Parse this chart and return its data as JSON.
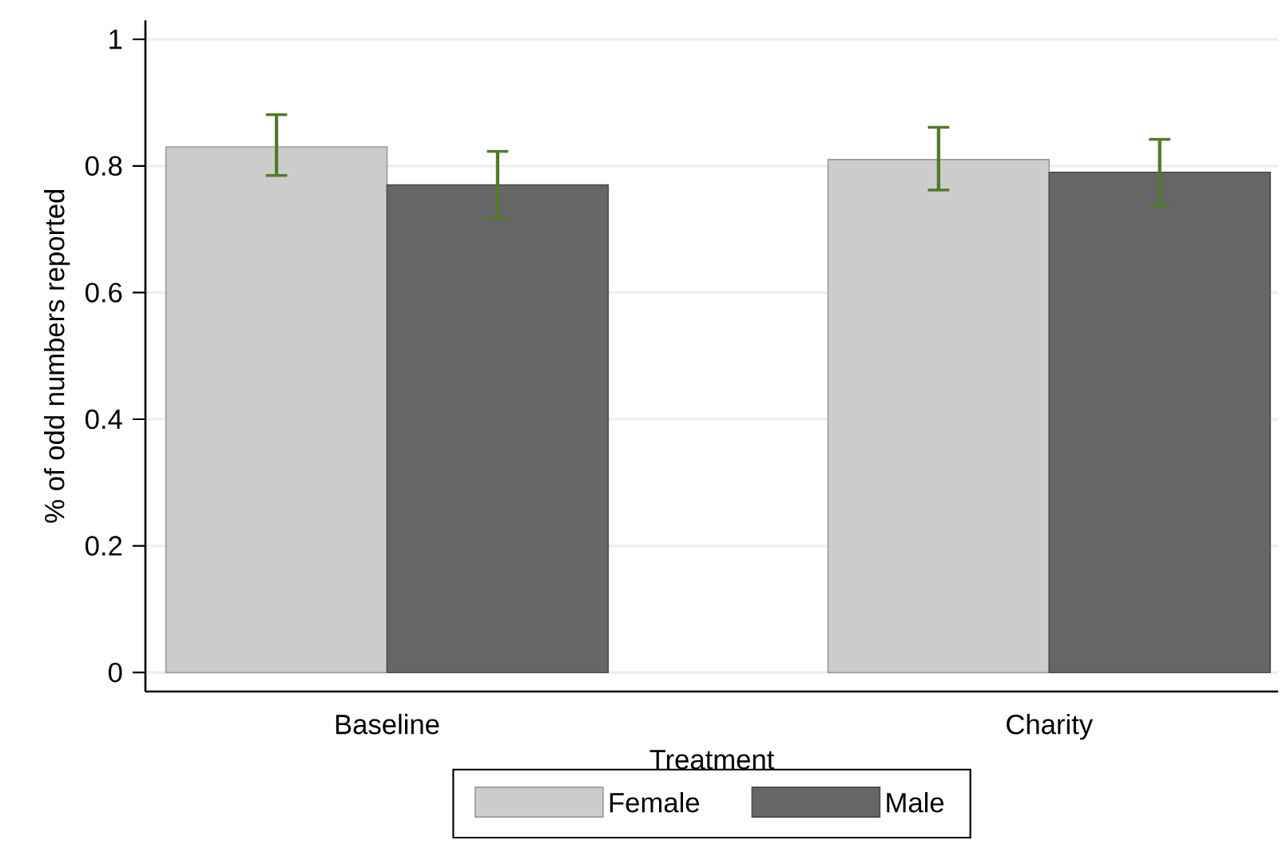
{
  "chart_data": {
    "type": "bar",
    "xlabel": "Treatment",
    "ylabel": "% of odd numbers reported",
    "categories": [
      "Baseline",
      "Charity"
    ],
    "series": [
      {
        "name": "Female",
        "color": "#cccccc",
        "values": [
          0.83,
          0.81
        ],
        "errors": [
          [
            0.785,
            0.881
          ],
          [
            0.762,
            0.861
          ]
        ]
      },
      {
        "name": "Male",
        "color": "#666666",
        "values": [
          0.77,
          0.79
        ],
        "errors": [
          [
            0.717,
            0.823
          ],
          [
            0.738,
            0.842
          ]
        ]
      }
    ],
    "ylim": [
      -0.03,
      1.03
    ],
    "yticks": [
      0,
      0.2,
      0.4,
      0.6,
      0.8,
      1
    ],
    "grid": "y",
    "legend": "bottom"
  }
}
